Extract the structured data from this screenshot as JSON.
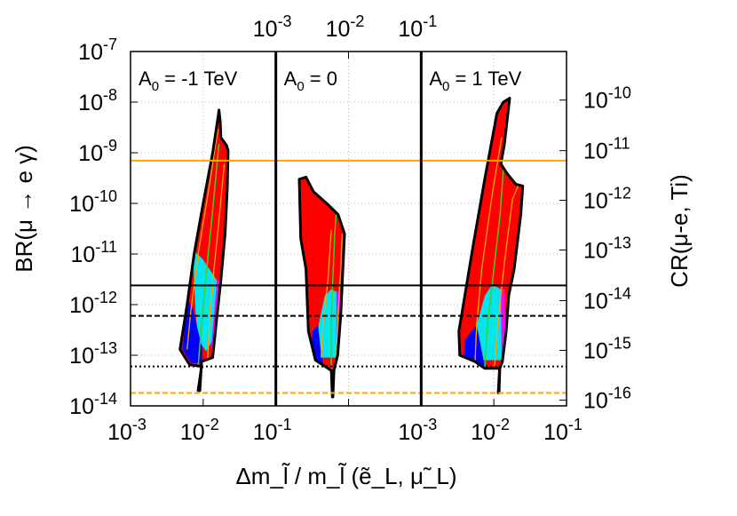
{
  "chart_data": {
    "type": "area",
    "xlabel": "Δm_l̃ / m_l̃ (ẽ_L, μ̃_L)",
    "ylabel_left": "BR(μ → e γ)",
    "ylabel_right": "CR(μ-e, Ti)",
    "x_scale": "log",
    "y_scale": "log",
    "grid": true,
    "x_panel_range": [
      0.001,
      0.1
    ],
    "ylim": [
      1e-14,
      1e-07
    ],
    "y_ticks": [
      {
        "value": 1e-07,
        "base": "10",
        "exp": "-7"
      },
      {
        "value": 1e-08,
        "base": "10",
        "exp": "-8"
      },
      {
        "value": 1e-09,
        "base": "10",
        "exp": "-9"
      },
      {
        "value": 1e-10,
        "base": "10",
        "exp": "-10"
      },
      {
        "value": 1e-11,
        "base": "10",
        "exp": "-11"
      },
      {
        "value": 1e-12,
        "base": "10",
        "exp": "-12"
      },
      {
        "value": 1e-13,
        "base": "10",
        "exp": "-13"
      },
      {
        "value": 1e-14,
        "base": "10",
        "exp": "-14"
      }
    ],
    "y2_ticks": [
      {
        "label_exp": "-10",
        "at_br": 1.1e-08
      },
      {
        "label_exp": "-11",
        "at_br": 1.1e-09
      },
      {
        "label_exp": "-12",
        "at_br": 1.15e-10
      },
      {
        "label_exp": "-13",
        "at_br": 1.2e-11
      },
      {
        "label_exp": "-14",
        "at_br": 1.2e-12
      },
      {
        "label_exp": "-15",
        "at_br": 1.25e-13
      },
      {
        "label_exp": "-16",
        "at_br": 1.3e-14
      }
    ],
    "x_ticks_bottom": [
      {
        "label": "10",
        "exp": "-3"
      },
      {
        "label": "10",
        "exp": "-2"
      },
      {
        "label": "10",
        "exp": "-1"
      },
      {
        "label": "10",
        "exp": "-3"
      },
      {
        "label": "10",
        "exp": "-2"
      },
      {
        "label": "10",
        "exp": "-1"
      }
    ],
    "x_ticks_top": [
      {
        "label": "10",
        "exp": "-3"
      },
      {
        "label": "10",
        "exp": "-2"
      },
      {
        "label": "10",
        "exp": "-1"
      }
    ],
    "panels": [
      {
        "label_main": "A",
        "label_sub": "0",
        "label_tail": " = -1 TeV"
      },
      {
        "label_main": "A",
        "label_sub": "0",
        "label_tail": " = 0"
      },
      {
        "label_main": "A",
        "label_sub": "0",
        "label_tail": " = 1 TeV"
      }
    ],
    "reference_lines": [
      {
        "y": 7e-10,
        "color": "#ffa500",
        "style": "solid"
      },
      {
        "y": 2.4e-12,
        "color": "#000000",
        "style": "solid"
      },
      {
        "y": 6e-13,
        "color": "#000000",
        "style": "dashed"
      },
      {
        "y": 6e-14,
        "color": "#000000",
        "style": "dotted"
      },
      {
        "y": 1.8e-14,
        "color": "#ffa500",
        "style": "dashed"
      }
    ],
    "region_colors": {
      "red": "#ff0000",
      "cyan": "#00e5ee",
      "blue": "#0000ff",
      "magenta": "#ff00ff",
      "green_contour": "#44cc22",
      "orange_contour": "#ffa500"
    },
    "regions": [
      {
        "panel": 0,
        "outline": [
          [
            0.0085,
            2e-14
          ],
          [
            0.0095,
            6e-14
          ],
          [
            0.0065,
            6.5e-14
          ],
          [
            0.0048,
            1.3e-13
          ],
          [
            0.006,
            1e-12
          ],
          [
            0.0075,
            1e-11
          ],
          [
            0.01,
            1e-10
          ],
          [
            0.0135,
            1e-09
          ],
          [
            0.016,
            5e-09
          ],
          [
            0.0165,
            7e-09
          ],
          [
            0.0172,
            4e-09
          ],
          [
            0.0175,
            2e-09
          ],
          [
            0.021,
            1.4e-09
          ],
          [
            0.022,
            1.1e-09
          ],
          [
            0.0215,
            2e-10
          ],
          [
            0.02,
            2.5e-11
          ],
          [
            0.0175,
            3e-12
          ],
          [
            0.0155,
            6e-13
          ],
          [
            0.0135,
            9e-14
          ],
          [
            0.0095,
            7.5e-14
          ],
          [
            0.009,
            2e-14
          ]
        ],
        "cyan": [
          [
            0.0072,
            1.2e-11
          ],
          [
            0.0098,
            8e-12
          ],
          [
            0.0155,
            3e-12
          ],
          [
            0.0135,
            2e-13
          ],
          [
            0.011,
            1.2e-13
          ],
          [
            0.0085,
            2e-13
          ],
          [
            0.0078,
            8e-13
          ]
        ],
        "blue": [
          [
            0.0052,
            1.3e-13
          ],
          [
            0.006,
            1.3e-12
          ],
          [
            0.0072,
            8e-13
          ],
          [
            0.0085,
            3e-13
          ],
          [
            0.0098,
            1.3e-13
          ],
          [
            0.0096,
            7e-14
          ],
          [
            0.0068,
            7e-14
          ]
        ],
        "magenta": [
          [
            0.0155,
            3e-12
          ],
          [
            0.0175,
            3e-12
          ],
          [
            0.016,
            7e-13
          ],
          [
            0.0143,
            1.2e-13
          ],
          [
            0.0128,
            1.4e-13
          ]
        ],
        "green": [
          [
            0.0085,
            6e-14
          ],
          [
            0.0095,
            4e-13
          ],
          [
            0.011,
            4e-12
          ],
          [
            0.0133,
            6e-11
          ],
          [
            0.0165,
            1.5e-09
          ]
        ],
        "orange": [
          [
            [
              0.006,
              1.3e-13
            ],
            [
              0.0068,
              8e-13
            ],
            [
              0.0085,
              1e-11
            ],
            [
              0.012,
              2e-10
            ],
            [
              0.016,
              3e-09
            ]
          ],
          [
            [
              0.0115,
              8e-14
            ],
            [
              0.0125,
              1e-12
            ],
            [
              0.016,
              3e-11
            ],
            [
              0.0195,
              6e-10
            ]
          ]
        ]
      },
      {
        "panel": 1,
        "outline": [
          [
            0.006,
            1.5e-14
          ],
          [
            0.0058,
            5e-14
          ],
          [
            0.0035,
            8e-14
          ],
          [
            0.0028,
            3e-13
          ],
          [
            0.0026,
            5e-12
          ],
          [
            0.0022,
            2e-11
          ],
          [
            0.0021,
            3e-10
          ],
          [
            0.0026,
            3.3e-10
          ],
          [
            0.0033,
            1.7e-10
          ],
          [
            0.005,
            1e-10
          ],
          [
            0.0072,
            6e-11
          ],
          [
            0.0088,
            2.5e-11
          ],
          [
            0.0083,
            4e-12
          ],
          [
            0.0078,
            6e-13
          ],
          [
            0.0071,
            1e-13
          ],
          [
            0.0063,
            5e-14
          ],
          [
            0.0061,
            1.5e-14
          ]
        ],
        "cyan": [
          [
            0.0038,
            3.5e-13
          ],
          [
            0.0047,
            1.5e-12
          ],
          [
            0.0058,
            2e-12
          ],
          [
            0.0068,
            1.8e-12
          ],
          [
            0.0074,
            4e-13
          ],
          [
            0.0069,
            9e-14
          ],
          [
            0.0042,
            9e-14
          ]
        ],
        "blue": [
          [
            0.003,
            8e-14
          ],
          [
            0.0032,
            3e-13
          ],
          [
            0.0038,
            4e-13
          ],
          [
            0.0042,
            1e-13
          ],
          [
            0.0046,
            6e-14
          ]
        ],
        "magenta": [
          [
            0.0068,
            1.8e-12
          ],
          [
            0.0078,
            1.8e-12
          ],
          [
            0.0074,
            4e-13
          ],
          [
            0.0071,
            1.2e-13
          ],
          [
            0.0068,
            9e-14
          ]
        ],
        "green": [
          [
            0.0058,
            5e-14
          ],
          [
            0.0058,
            3e-13
          ],
          [
            0.006,
            2e-12
          ],
          [
            0.0065,
            3e-11
          ],
          [
            0.007,
            1e-10
          ]
        ],
        "orange": [
          [
            [
              0.0042,
              9e-14
            ],
            [
              0.0045,
              5e-13
            ],
            [
              0.0052,
              3e-12
            ],
            [
              0.0058,
              3e-11
            ]
          ],
          [
            [
              0.0068,
              9e-14
            ],
            [
              0.0072,
              7e-13
            ],
            [
              0.0078,
              5e-12
            ],
            [
              0.0082,
              2.5e-11
            ]
          ]
        ]
      },
      {
        "panel": 2,
        "outline": [
          [
            0.0115,
            1.8e-14
          ],
          [
            0.012,
            5.5e-14
          ],
          [
            0.0075,
            5.5e-14
          ],
          [
            0.0055,
            7.5e-14
          ],
          [
            0.0034,
            1e-13
          ],
          [
            0.0033,
            3e-13
          ],
          [
            0.0038,
            1e-12
          ],
          [
            0.0052,
            1.5e-11
          ],
          [
            0.0075,
            3e-10
          ],
          [
            0.011,
            6e-09
          ],
          [
            0.0135,
            1e-08
          ],
          [
            0.0165,
            1.2e-08
          ],
          [
            0.014,
            1.5e-09
          ],
          [
            0.0125,
            6e-10
          ],
          [
            0.015,
            4e-10
          ],
          [
            0.02,
            2.4e-10
          ],
          [
            0.025,
            2.2e-10
          ],
          [
            0.0235,
            6e-11
          ],
          [
            0.019,
            5e-12
          ],
          [
            0.016,
            1.5e-12
          ],
          [
            0.0148,
            3e-13
          ],
          [
            0.0131,
            7.5e-14
          ],
          [
            0.0121,
            5.5e-14
          ],
          [
            0.0118,
            1.8e-14
          ]
        ],
        "cyan": [
          [
            0.0058,
            4e-13
          ],
          [
            0.0075,
            1.5e-12
          ],
          [
            0.0095,
            2.5e-12
          ],
          [
            0.0125,
            2e-12
          ],
          [
            0.0142,
            5e-13
          ],
          [
            0.0128,
            8e-14
          ],
          [
            0.0072,
            8e-14
          ]
        ],
        "blue": [
          [
            0.0038,
            7e-14
          ],
          [
            0.004,
            2e-13
          ],
          [
            0.0058,
            4e-13
          ],
          [
            0.0072,
            8e-14
          ],
          [
            0.0075,
            6e-14
          ]
        ],
        "magenta": [
          [
            0.0125,
            2e-12
          ],
          [
            0.014,
            2e-12
          ],
          [
            0.0145,
            3e-13
          ],
          [
            0.0131,
            7.5e-14
          ],
          [
            0.0128,
            8e-14
          ]
        ],
        "green": [
          [
            0.0075,
            5.5e-14
          ],
          [
            0.0082,
            4e-13
          ],
          [
            0.01,
            5e-12
          ],
          [
            0.0122,
            6e-11
          ],
          [
            0.0137,
            6e-10
          ]
        ],
        "orange": [
          [
            [
              0.0055,
              7e-14
            ],
            [
              0.0058,
              4e-13
            ],
            [
              0.0068,
              5e-12
            ],
            [
              0.0095,
              1.5e-10
            ],
            [
              0.0128,
              2e-09
            ]
          ],
          [
            [
              0.0102,
              5.5e-14
            ],
            [
              0.0112,
              4e-13
            ],
            [
              0.0142,
              8e-12
            ],
            [
              0.018,
              1.2e-10
            ],
            [
              0.0215,
              2.2e-10
            ]
          ]
        ]
      }
    ]
  }
}
